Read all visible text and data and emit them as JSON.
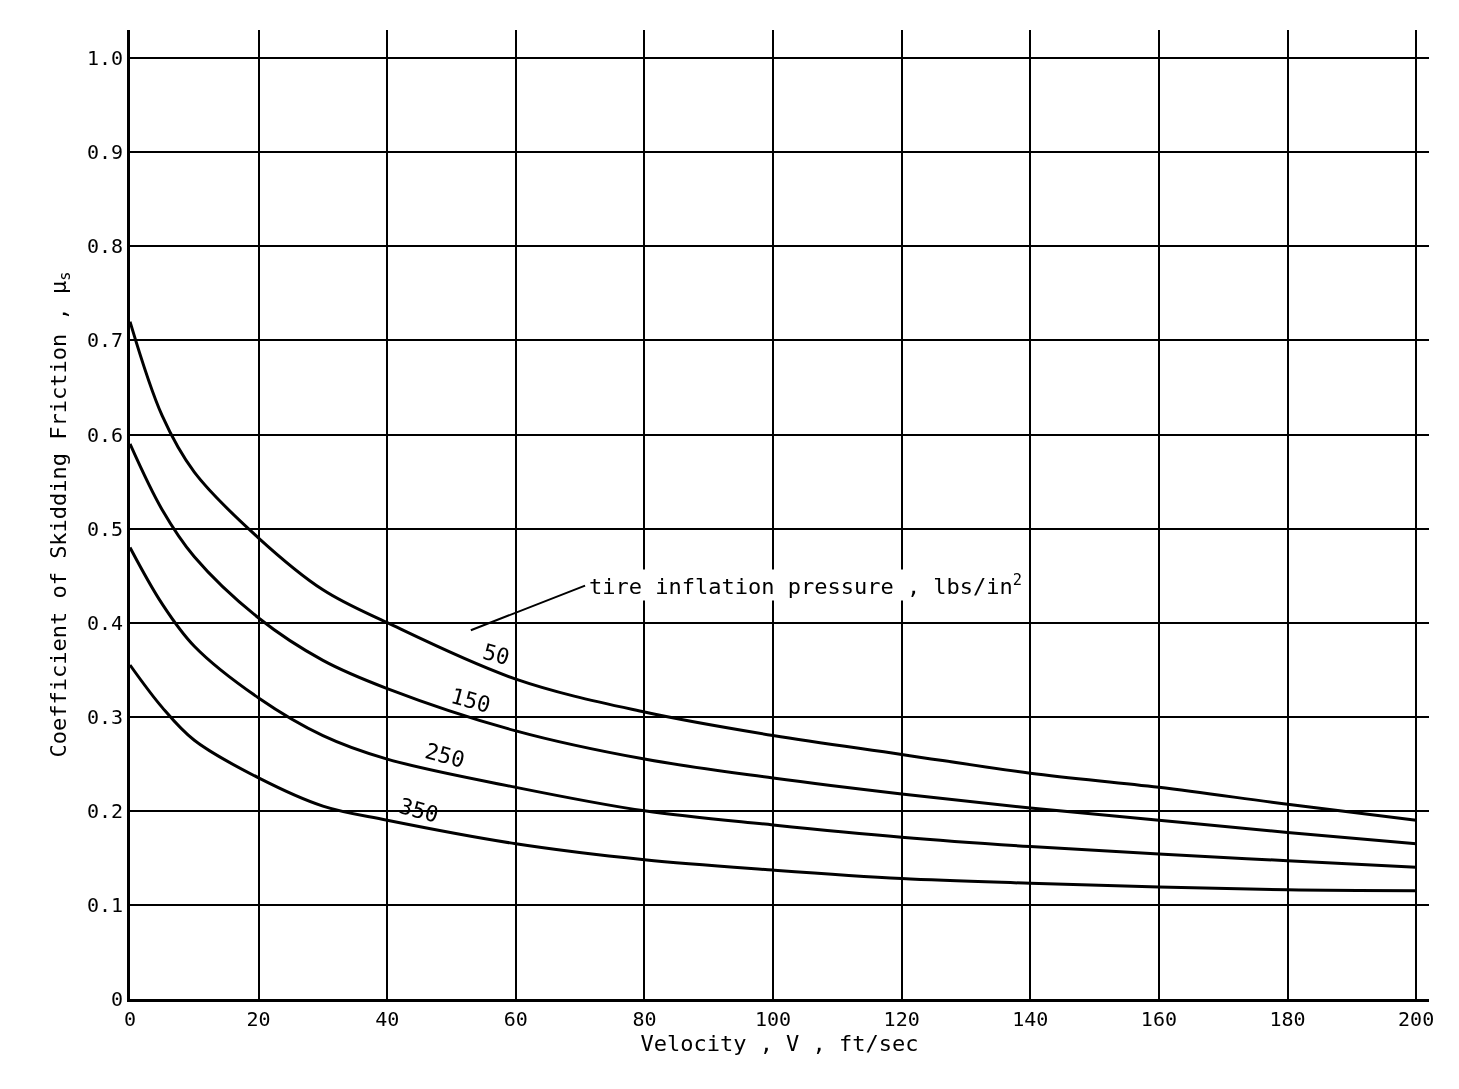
{
  "chart_data": {
    "type": "line",
    "xlabel": "Velocity , V , ft/sec",
    "ylabel": "Coefficient of Skidding Friction , μ$_{s}$",
    "annotations": [
      "tire inflation pressure , lbs/in$^{2}$"
    ],
    "x": [
      0,
      5,
      10,
      20,
      30,
      40,
      60,
      80,
      100,
      120,
      140,
      160,
      180,
      200
    ],
    "series": [
      {
        "name": "50",
        "color": "#000000",
        "values": [
          0.72,
          0.62,
          0.56,
          0.49,
          0.435,
          0.4,
          0.34,
          0.305,
          0.28,
          0.26,
          0.24,
          0.225,
          0.207,
          0.19
        ]
      },
      {
        "name": "150",
        "color": "#000000",
        "values": [
          0.59,
          0.52,
          0.47,
          0.405,
          0.36,
          0.33,
          0.285,
          0.255,
          0.235,
          0.218,
          0.203,
          0.19,
          0.177,
          0.165
        ]
      },
      {
        "name": "250",
        "color": "#000000",
        "values": [
          0.48,
          0.42,
          0.375,
          0.32,
          0.28,
          0.255,
          0.225,
          0.2,
          0.185,
          0.172,
          0.162,
          0.154,
          0.147,
          0.14
        ]
      },
      {
        "name": "350",
        "color": "#000000",
        "values": [
          0.355,
          0.31,
          0.275,
          0.235,
          0.205,
          0.19,
          0.165,
          0.148,
          0.137,
          0.128,
          0.123,
          0.119,
          0.116,
          0.115
        ]
      }
    ],
    "xlim": [
      0,
      202
    ],
    "ylim": [
      0,
      1.03
    ],
    "xticks": [
      0,
      20,
      40,
      60,
      80,
      100,
      120,
      140,
      160,
      180,
      200
    ],
    "yticks": [
      0,
      0.1,
      0.2,
      0.3,
      0.4,
      0.5,
      0.6,
      0.7,
      0.8,
      0.9,
      {
        "value": 1.0,
        "label": "1.0"
      }
    ],
    "grid": true,
    "legend": false,
    "marker": "none",
    "line_style": "solid"
  }
}
